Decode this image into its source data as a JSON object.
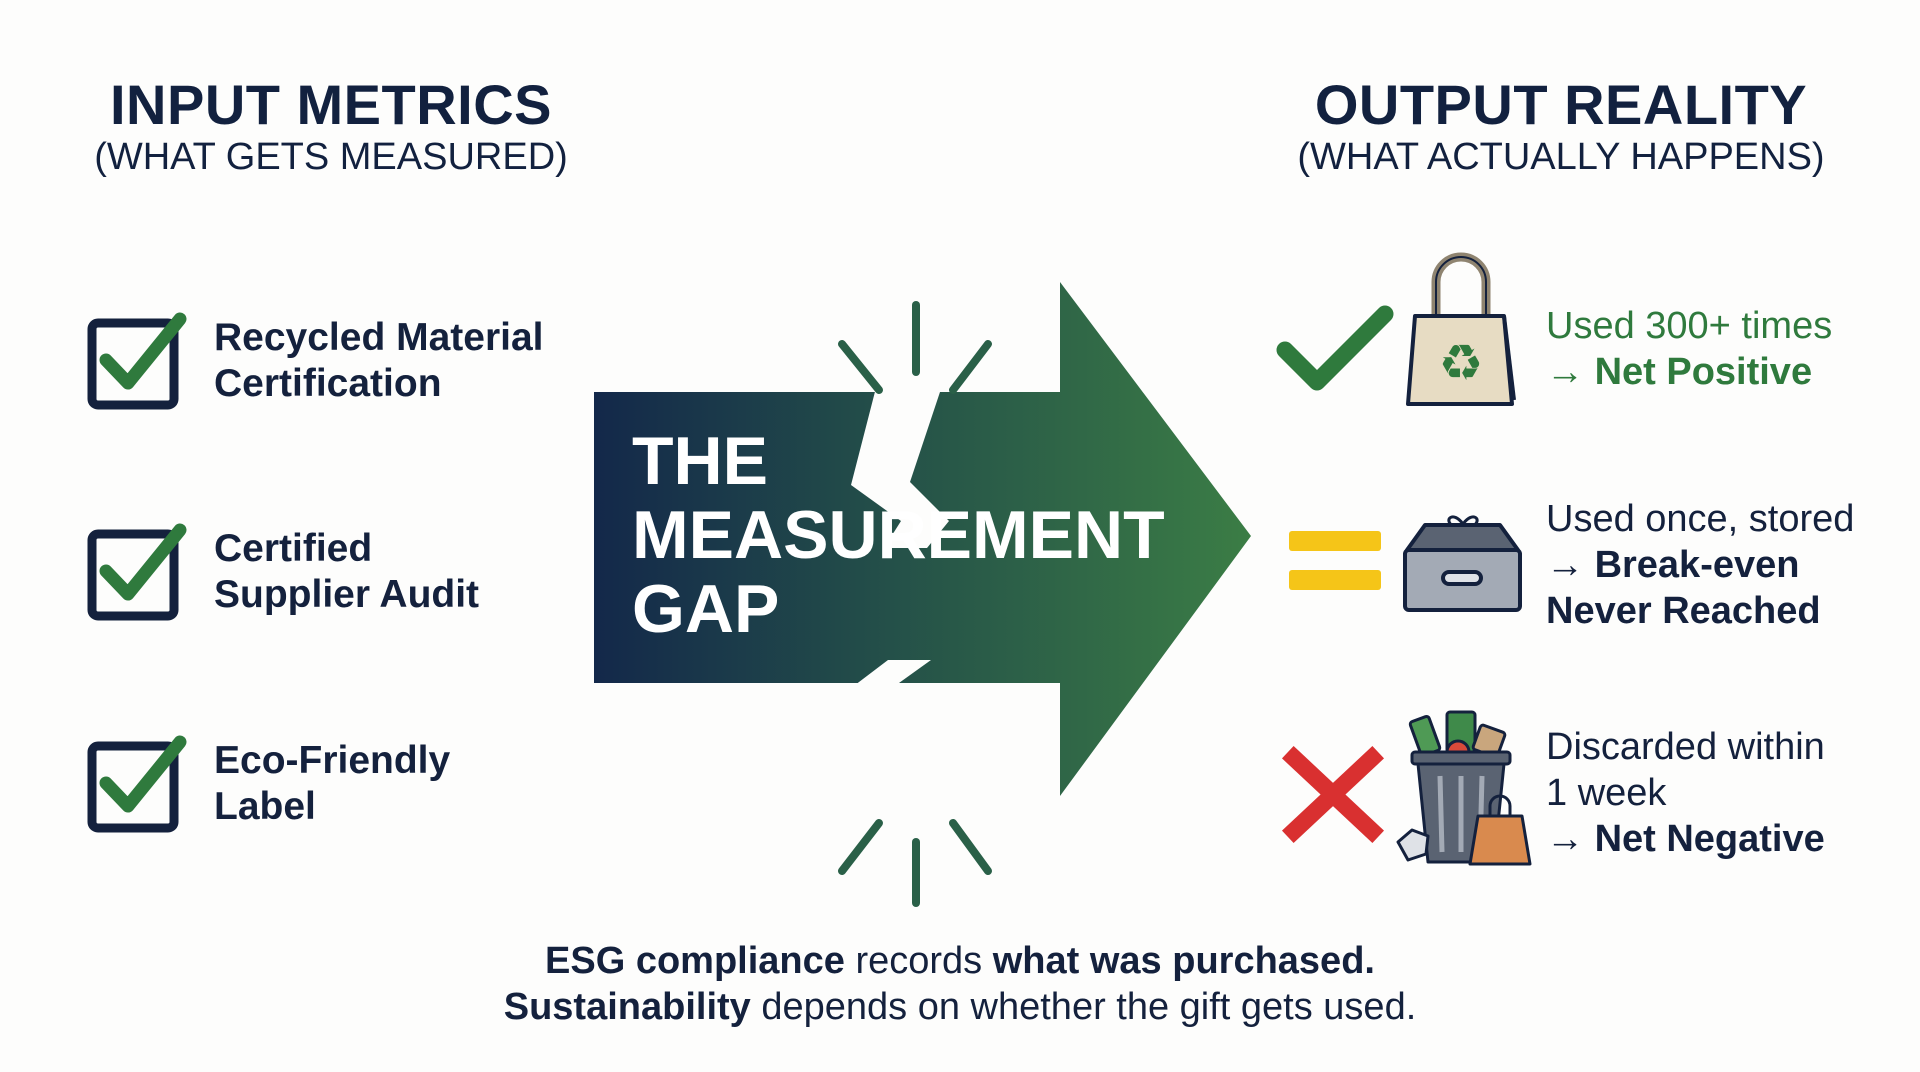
{
  "left": {
    "title": "INPUT METRICS",
    "subtitle": "(WHAT GETS MEASURED)",
    "items": [
      {
        "line1": "Recycled Material",
        "line2": "Certification",
        "icon": "checkbox-checked-icon"
      },
      {
        "line1": "Certified",
        "line2": "Supplier Audit",
        "icon": "checkbox-checked-icon"
      },
      {
        "line1": "Eco-Friendly",
        "line2": "Label",
        "icon": "checkbox-checked-icon"
      }
    ]
  },
  "center": {
    "line1": "THE",
    "line2": "MEASUREMENT",
    "line3": "GAP"
  },
  "right": {
    "title": "OUTPUT REALITY",
    "subtitle": "(WHAT ACTUALLY HAPPENS)",
    "items": [
      {
        "status_icon": "check-icon",
        "image_icon": "reusable-tote-bag-icon",
        "line1": "Used 300+ times",
        "arrow": "→",
        "result": "Net Positive"
      },
      {
        "status_icon": "equals-icon",
        "image_icon": "storage-box-with-gift-icon",
        "line1": "Used once, stored",
        "arrow": "→",
        "result": "Break-even",
        "result2": "Never Reached"
      },
      {
        "status_icon": "x-icon",
        "image_icon": "trash-can-icon",
        "line1": "Discarded within",
        "line1b": "1 week",
        "arrow": "→",
        "result": "Net Negative"
      }
    ]
  },
  "footer": {
    "l1_bold1": "ESG compliance",
    "l1_text": " records ",
    "l1_bold2": "what was purchased.",
    "l2_bold": "Sustainability",
    "l2_text": " depends on whether the gift gets used."
  },
  "colors": {
    "navy": "#14213d",
    "green": "#2f7a3d",
    "yellow": "#f5c518",
    "red": "#d93030",
    "arrow_start": "#13284a",
    "arrow_end": "#3b7d45"
  }
}
